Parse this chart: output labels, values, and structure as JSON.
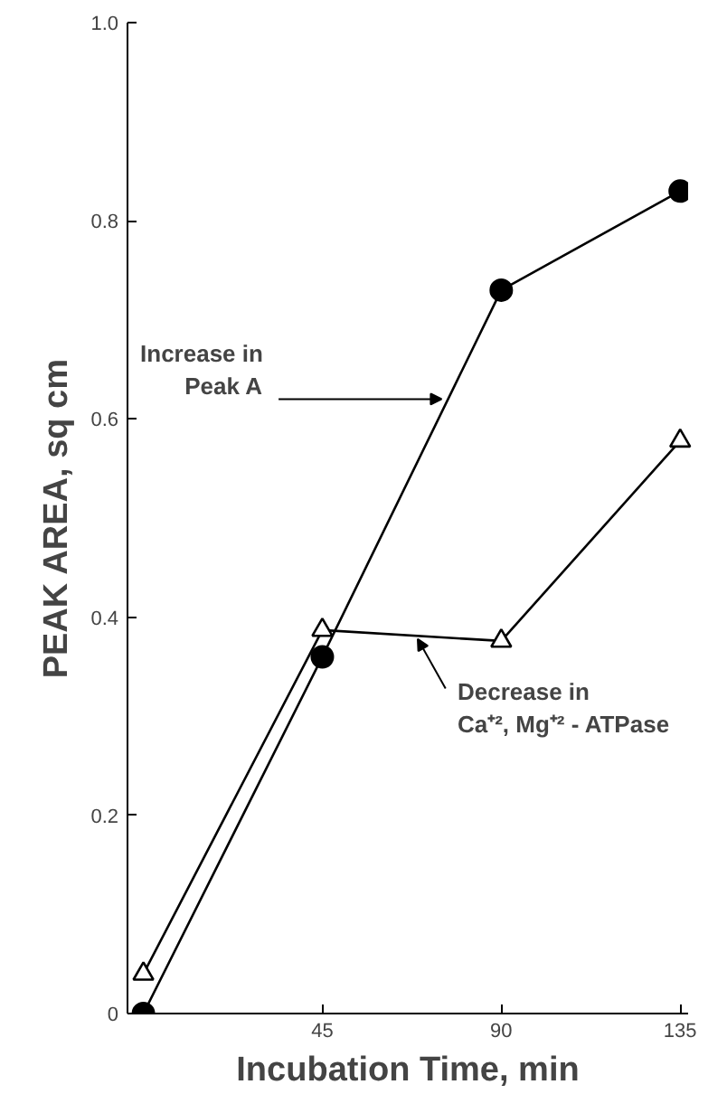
{
  "chart_data": {
    "type": "line",
    "xlabel": "Incubation Time, min",
    "ylabel": "PEAK AREA, sq cm",
    "xlim": [
      -4,
      137
    ],
    "ylim": [
      0,
      1.0
    ],
    "xticks": [
      45,
      90,
      135
    ],
    "yticks": [
      {
        "value": 0,
        "label": "0"
      },
      0.2,
      0.4,
      0.6,
      0.8,
      {
        "value": 1.0,
        "label": "1.0"
      }
    ],
    "grid": false,
    "series": [
      {
        "x": [
          0,
          45,
          90,
          135
        ],
        "values": [
          0,
          0.36,
          0.73,
          0.83
        ],
        "color": "#000000",
        "marker": "circle"
      },
      {
        "x": [
          0,
          45,
          90,
          135
        ],
        "values": [
          0.04,
          0.387,
          0.376,
          0.578
        ],
        "color": "#000000",
        "marker": "triangle"
      }
    ],
    "annotations": [
      {
        "text": "Increase in\nPeak A",
        "x": 75,
        "y": 0.62
      },
      {
        "text": "Decrease in\nCa⁺², Mg⁺² - ATPase",
        "x": 69,
        "y": 0.378
      }
    ]
  }
}
